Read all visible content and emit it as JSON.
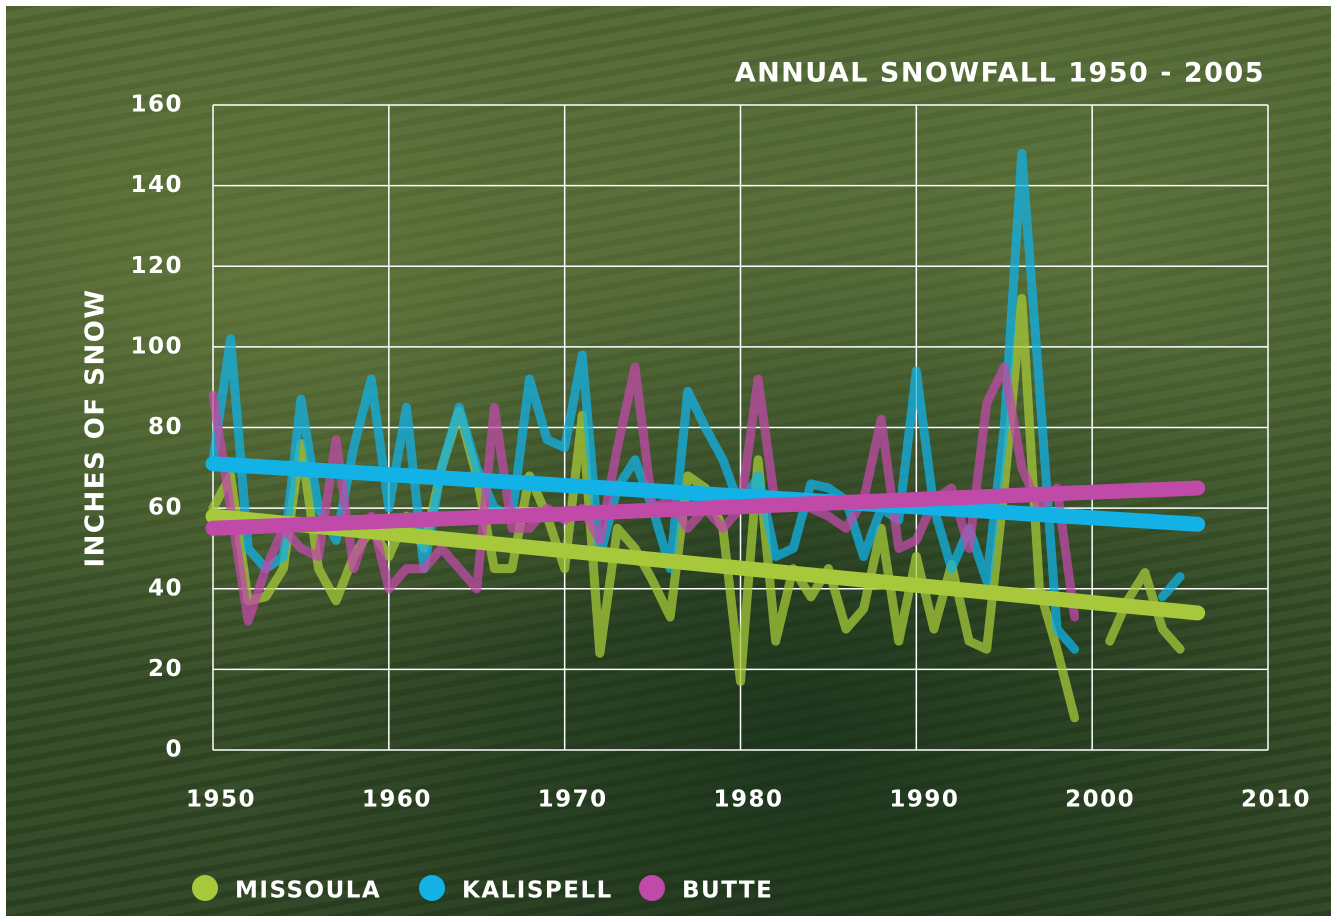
{
  "chart_data": {
    "type": "line",
    "title": "ANNUAL SNOWFALL 1950 - 2005",
    "y_label": "INCHES OF SNOW",
    "x": [
      1950,
      1951,
      1952,
      1953,
      1954,
      1955,
      1956,
      1957,
      1958,
      1959,
      1960,
      1961,
      1962,
      1963,
      1964,
      1965,
      1966,
      1967,
      1968,
      1969,
      1970,
      1971,
      1972,
      1973,
      1974,
      1975,
      1976,
      1977,
      1978,
      1979,
      1980,
      1981,
      1982,
      1983,
      1984,
      1985,
      1986,
      1987,
      1988,
      1989,
      1990,
      1991,
      1992,
      1993,
      1994,
      1995,
      1996,
      1997,
      1998,
      1999,
      2000,
      2001,
      2002,
      2003,
      2004,
      2005
    ],
    "series": [
      {
        "name": "MISSOULA",
        "color": "#a6c83a",
        "values": [
          60,
          68,
          37,
          38,
          45,
          76,
          45,
          37,
          48,
          55,
          48,
          58,
          50,
          70,
          84,
          68,
          45,
          45,
          68,
          58,
          45,
          83,
          24,
          55,
          50,
          42,
          33,
          68,
          65,
          55,
          17,
          72,
          27,
          45,
          38,
          45,
          30,
          35,
          55,
          27,
          48,
          30,
          46,
          27,
          25,
          65,
          112,
          40,
          25,
          8,
          null,
          27,
          37,
          44,
          30,
          25
        ],
        "trend": {
          "x": [
            1950,
            2006
          ],
          "values": [
            58,
            34
          ]
        }
      },
      {
        "name": "KALISPELL",
        "color": "#12b2e6",
        "values": [
          72,
          102,
          50,
          45,
          48,
          87,
          60,
          52,
          75,
          92,
          60,
          85,
          45,
          70,
          85,
          70,
          60,
          58,
          92,
          77,
          75,
          98,
          48,
          65,
          72,
          60,
          45,
          89,
          80,
          72,
          60,
          68,
          48,
          50,
          66,
          65,
          62,
          48,
          60,
          57,
          94,
          60,
          45,
          55,
          42,
          80,
          148,
          90,
          30,
          25,
          null,
          null,
          null,
          null,
          38,
          43
        ],
        "trend": {
          "x": [
            1950,
            2006
          ],
          "values": [
            71,
            56
          ]
        }
      },
      {
        "name": "BUTTE",
        "color": "#c04aa8",
        "values": [
          88,
          60,
          32,
          45,
          55,
          50,
          48,
          77,
          45,
          58,
          40,
          45,
          45,
          50,
          45,
          40,
          85,
          55,
          55,
          60,
          57,
          60,
          52,
          75,
          95,
          60,
          62,
          55,
          60,
          55,
          60,
          92,
          60,
          62,
          60,
          58,
          55,
          62,
          82,
          50,
          52,
          62,
          65,
          50,
          86,
          95,
          70,
          60,
          65,
          33,
          null,
          null,
          null,
          null,
          null,
          null
        ],
        "trend": {
          "x": [
            1950,
            2006
          ],
          "values": [
            55,
            65
          ]
        }
      }
    ],
    "xlim": [
      1950,
      2010
    ],
    "xticks": [
      1950,
      1960,
      1970,
      1980,
      1990,
      2000,
      2010
    ],
    "ylim": [
      0,
      160
    ],
    "yticks": [
      0,
      20,
      40,
      60,
      80,
      100,
      120,
      140,
      160
    ],
    "grid": true
  }
}
